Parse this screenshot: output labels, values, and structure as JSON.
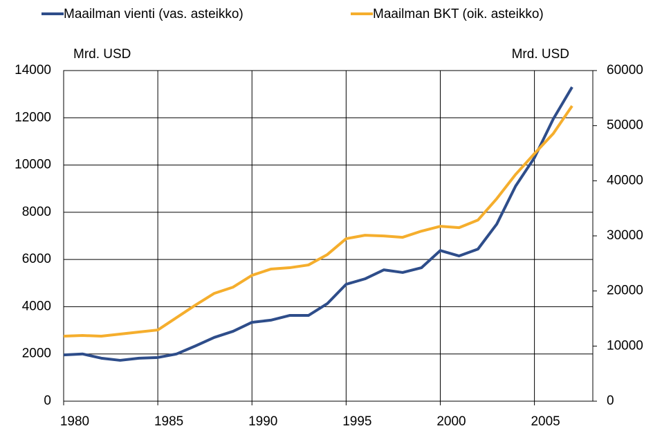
{
  "chart_data": {
    "type": "line",
    "y_label": "Mrd. USD",
    "y2_label": "Mrd. USD",
    "x": [
      1980,
      1981,
      1982,
      1983,
      1984,
      1985,
      1986,
      1987,
      1988,
      1989,
      1990,
      1991,
      1992,
      1993,
      1994,
      1995,
      1996,
      1997,
      1998,
      1999,
      2000,
      2001,
      2002,
      2003,
      2004,
      2005,
      2006,
      2007
    ],
    "series": [
      {
        "name": "Maailman vienti (vas. asteikko)",
        "color": "#2e4d8a",
        "axis": "y",
        "values": [
          1960,
          2000,
          1820,
          1730,
          1820,
          1850,
          2000,
          2340,
          2700,
          2960,
          3340,
          3430,
          3630,
          3630,
          4130,
          4950,
          5180,
          5560,
          5450,
          5650,
          6380,
          6150,
          6440,
          7500,
          9110,
          10310,
          11950,
          13300
        ]
      },
      {
        "name": "Maailman BKT (oik. asteikko)",
        "color": "#f5ae2d",
        "axis": "y2",
        "values": [
          11800,
          11920,
          11800,
          12170,
          12550,
          12920,
          15180,
          17440,
          19570,
          20700,
          22840,
          23970,
          24220,
          24720,
          26600,
          29490,
          30110,
          29990,
          29740,
          30860,
          31740,
          31490,
          32870,
          36760,
          41150,
          44920,
          48560,
          53580
        ]
      }
    ],
    "xlim": [
      1980,
      2008.1
    ],
    "xticks": [
      1980,
      1985,
      1990,
      1995,
      2000,
      2005
    ],
    "ylim": [
      0,
      14000
    ],
    "yticks": [
      0,
      2000,
      4000,
      6000,
      8000,
      10000,
      12000,
      14000
    ],
    "y2lim": [
      0,
      60000
    ],
    "y2ticks": [
      0,
      10000,
      20000,
      30000,
      40000,
      50000,
      60000
    ],
    "grid": true
  }
}
